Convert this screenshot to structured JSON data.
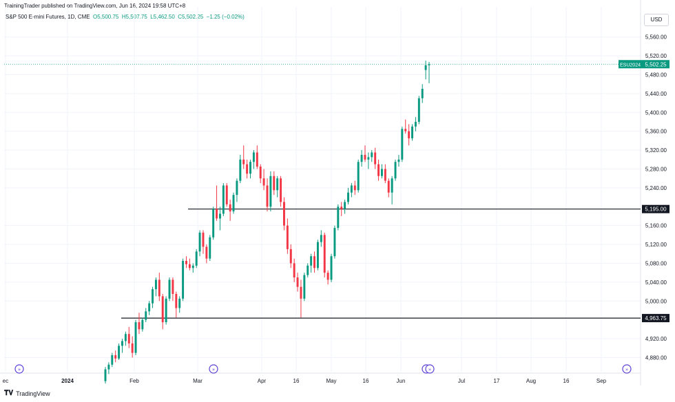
{
  "header": {
    "publisher": "TrainingTrader published on TradingView.com, Jun 16, 2024 19:58 UTC+8"
  },
  "symbol": {
    "name": "S&P 500 E-mini Futures, 1D, CME",
    "open": "O5,500.75",
    "high": "H5,507.75",
    "low": "L5,462.50",
    "close": "C5,502.25",
    "change": "−1.25 (−0.02%)"
  },
  "currency_button": "USD",
  "footer": {
    "brand": "TradingView"
  },
  "colors": {
    "up": "#089981",
    "down": "#f23645",
    "grid": "#f0f3fa",
    "line": "#131722",
    "event": "#5c3fd6"
  },
  "chart_data": {
    "type": "candlestick",
    "symbol_label": "ESU2024",
    "last_price": "5,502.25",
    "ylim": [
      4850,
      5580
    ],
    "y_ticks": [
      "5,560.00",
      "5,520.00",
      "5,480.00",
      "5,440.00",
      "5,400.00",
      "5,360.00",
      "5,320.00",
      "5,280.00",
      "5,240.00",
      "5,160.00",
      "5,120.00",
      "5,080.00",
      "5,040.00",
      "5,000.00",
      "4,920.00",
      "4,880.00"
    ],
    "y_tick_values": [
      5560,
      5520,
      5480,
      5440,
      5400,
      5360,
      5320,
      5280,
      5240,
      5160,
      5120,
      5080,
      5040,
      5000,
      4920,
      4880
    ],
    "x_ticks": [
      "ec",
      "2024",
      "Feb",
      "Mar",
      "Apr",
      "16",
      "May",
      "16",
      "Jun",
      "Jul",
      "17",
      "Aug",
      "16",
      "Sep"
    ],
    "x_tick_bold": [
      "2024"
    ],
    "horizontal_levels": [
      {
        "value": 5195.0,
        "label": "5,195.00"
      },
      {
        "value": 4963.75,
        "label": "4,963.75"
      }
    ],
    "event_markers": 6,
    "candles": [
      [
        4830,
        4860,
        4825,
        4855
      ],
      [
        4855,
        4870,
        4845,
        4865
      ],
      [
        4865,
        4890,
        4860,
        4885
      ],
      [
        4885,
        4895,
        4870,
        4878
      ],
      [
        4878,
        4910,
        4875,
        4905
      ],
      [
        4905,
        4920,
        4890,
        4915
      ],
      [
        4915,
        4935,
        4905,
        4930
      ],
      [
        4930,
        4945,
        4900,
        4910
      ],
      [
        4910,
        4925,
        4880,
        4890
      ],
      [
        4890,
        4960,
        4885,
        4955
      ],
      [
        4955,
        4975,
        4930,
        4940
      ],
      [
        4940,
        4965,
        4935,
        4960
      ],
      [
        4960,
        4985,
        4955,
        4978
      ],
      [
        4978,
        5000,
        4970,
        4995
      ],
      [
        4995,
        5030,
        4985,
        5025
      ],
      [
        5025,
        5050,
        5010,
        5045
      ],
      [
        5045,
        5060,
        5000,
        5010
      ],
      [
        5010,
        5015,
        4940,
        4955
      ],
      [
        4955,
        5010,
        4950,
        5005
      ],
      [
        5005,
        5050,
        5000,
        5045
      ],
      [
        5045,
        5050,
        5000,
        5015
      ],
      [
        5015,
        5020,
        4965,
        4985
      ],
      [
        4985,
        5010,
        4975,
        5005
      ],
      [
        5005,
        5090,
        5000,
        5085
      ],
      [
        5085,
        5095,
        5070,
        5078
      ],
      [
        5078,
        5090,
        5065,
        5070
      ],
      [
        5070,
        5080,
        5060,
        5075
      ],
      [
        5075,
        5110,
        5070,
        5105
      ],
      [
        5105,
        5150,
        5095,
        5145
      ],
      [
        5145,
        5150,
        5100,
        5115
      ],
      [
        5115,
        5120,
        5080,
        5090
      ],
      [
        5090,
        5140,
        5085,
        5135
      ],
      [
        5135,
        5200,
        5130,
        5195
      ],
      [
        5195,
        5245,
        5170,
        5175
      ],
      [
        5175,
        5200,
        5150,
        5185
      ],
      [
        5185,
        5250,
        5180,
        5245
      ],
      [
        5245,
        5250,
        5200,
        5205
      ],
      [
        5205,
        5215,
        5170,
        5190
      ],
      [
        5190,
        5230,
        5185,
        5225
      ],
      [
        5225,
        5260,
        5210,
        5255
      ],
      [
        5255,
        5310,
        5250,
        5300
      ],
      [
        5300,
        5330,
        5280,
        5290
      ],
      [
        5290,
        5300,
        5260,
        5270
      ],
      [
        5270,
        5300,
        5260,
        5295
      ],
      [
        5295,
        5320,
        5280,
        5315
      ],
      [
        5315,
        5330,
        5280,
        5285
      ],
      [
        5285,
        5290,
        5250,
        5260
      ],
      [
        5260,
        5280,
        5235,
        5245
      ],
      [
        5245,
        5260,
        5190,
        5200
      ],
      [
        5200,
        5275,
        5190,
        5265
      ],
      [
        5265,
        5275,
        5225,
        5235
      ],
      [
        5235,
        5265,
        5220,
        5260
      ],
      [
        5260,
        5265,
        5200,
        5210
      ],
      [
        5210,
        5220,
        5150,
        5160
      ],
      [
        5160,
        5175,
        5100,
        5110
      ],
      [
        5110,
        5120,
        5070,
        5080
      ],
      [
        5080,
        5090,
        5040,
        5050
      ],
      [
        5050,
        5060,
        5020,
        5030
      ],
      [
        5030,
        5045,
        4965,
        5005
      ],
      [
        5005,
        5060,
        5000,
        5055
      ],
      [
        5055,
        5080,
        5050,
        5075
      ],
      [
        5075,
        5100,
        5060,
        5095
      ],
      [
        5095,
        5105,
        5060,
        5070
      ],
      [
        5070,
        5130,
        5065,
        5125
      ],
      [
        5125,
        5150,
        5115,
        5140
      ],
      [
        5140,
        5145,
        5050,
        5060
      ],
      [
        5060,
        5065,
        5035,
        5045
      ],
      [
        5045,
        5100,
        5040,
        5095
      ],
      [
        5095,
        5160,
        5090,
        5155
      ],
      [
        5155,
        5205,
        5150,
        5200
      ],
      [
        5200,
        5210,
        5180,
        5195
      ],
      [
        5195,
        5215,
        5185,
        5210
      ],
      [
        5210,
        5240,
        5205,
        5230
      ],
      [
        5230,
        5250,
        5220,
        5245
      ],
      [
        5245,
        5255,
        5225,
        5235
      ],
      [
        5235,
        5300,
        5230,
        5295
      ],
      [
        5295,
        5320,
        5285,
        5310
      ],
      [
        5310,
        5330,
        5295,
        5300
      ],
      [
        5300,
        5315,
        5280,
        5305
      ],
      [
        5305,
        5320,
        5295,
        5315
      ],
      [
        5315,
        5325,
        5280,
        5290
      ],
      [
        5290,
        5300,
        5255,
        5265
      ],
      [
        5265,
        5290,
        5260,
        5280
      ],
      [
        5280,
        5290,
        5250,
        5255
      ],
      [
        5255,
        5260,
        5220,
        5230
      ],
      [
        5230,
        5265,
        5205,
        5260
      ],
      [
        5260,
        5300,
        5255,
        5295
      ],
      [
        5295,
        5310,
        5285,
        5300
      ],
      [
        5300,
        5370,
        5295,
        5365
      ],
      [
        5365,
        5385,
        5355,
        5360
      ],
      [
        5360,
        5375,
        5330,
        5345
      ],
      [
        5345,
        5375,
        5340,
        5370
      ],
      [
        5370,
        5390,
        5360,
        5380
      ],
      [
        5380,
        5435,
        5375,
        5430
      ],
      [
        5430,
        5460,
        5420,
        5450
      ],
      [
        5490,
        5510,
        5470,
        5500
      ],
      [
        5500,
        5507,
        5462,
        5502
      ]
    ]
  }
}
